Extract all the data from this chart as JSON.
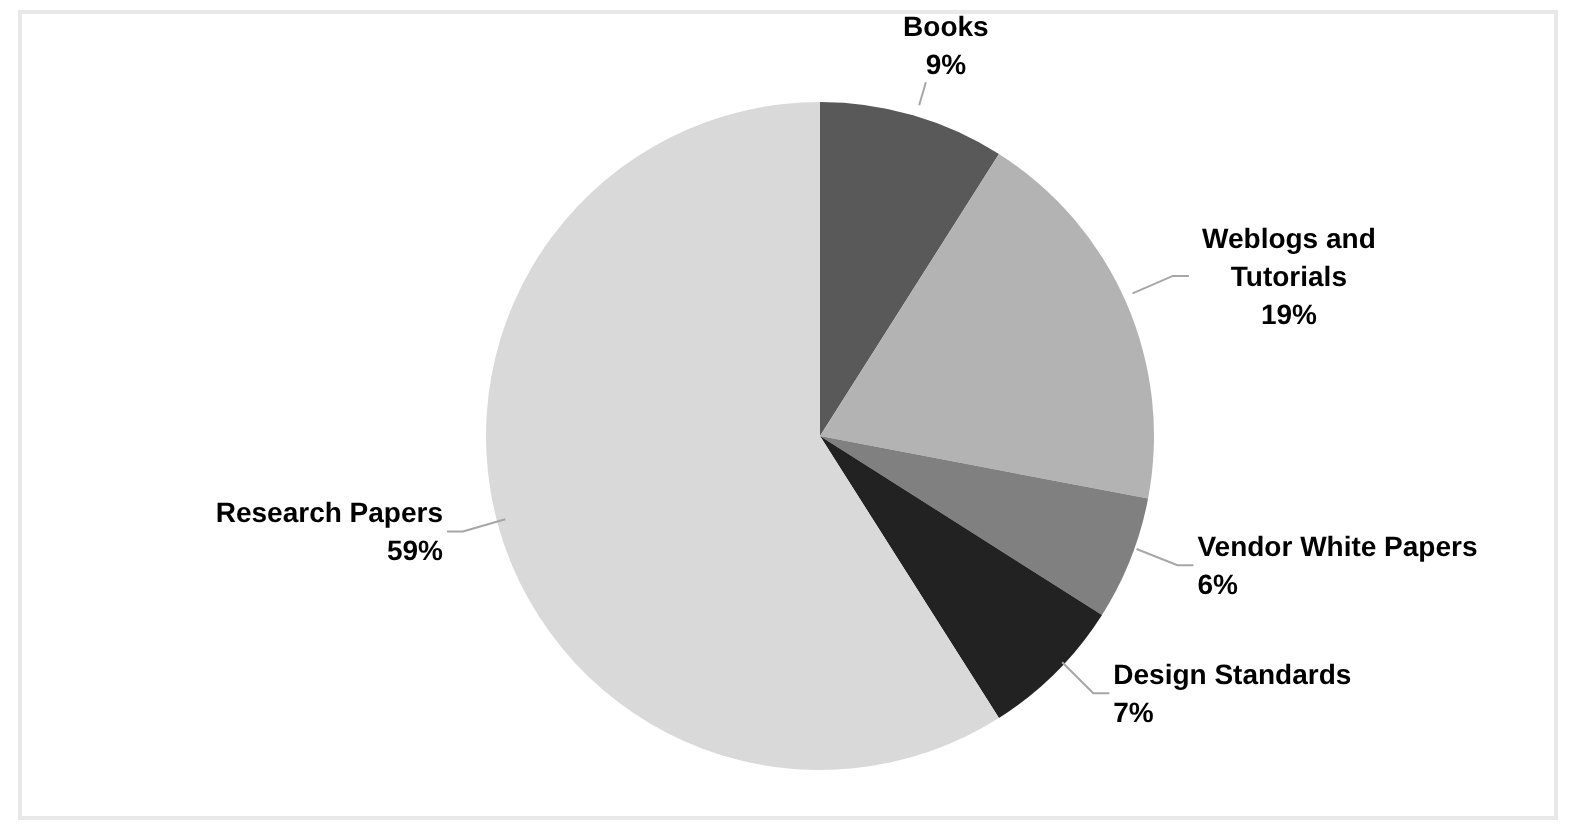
{
  "chart_data": {
    "type": "pie",
    "categories": [
      "Books",
      "Weblogs and Tutorials",
      "Vendor White Papers",
      "Design Standards",
      "Research Papers"
    ],
    "values": [
      9,
      19,
      6,
      7,
      59
    ],
    "colors": [
      "#595959",
      "#b3b3b3",
      "#808080",
      "#222222",
      "#d9d9d9"
    ],
    "value_labels": [
      "9%",
      "19%",
      "6%",
      "7%",
      "59%"
    ],
    "legend": false
  }
}
